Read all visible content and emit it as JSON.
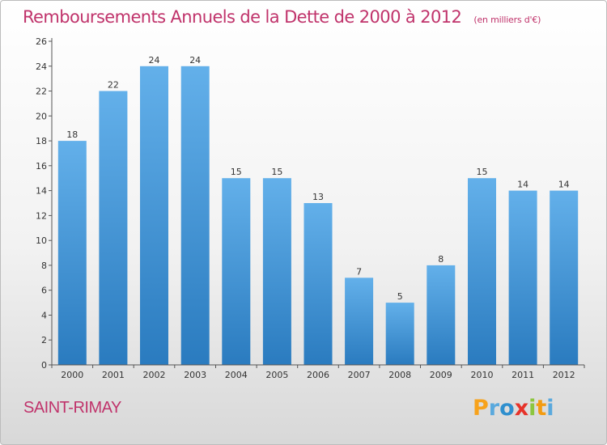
{
  "header": {
    "title": "Remboursements Annuels de la Dette de 2000 à 2012",
    "subtitle": "(en milliers d'€)"
  },
  "location": "SAINT-RIMAY",
  "logo_text": "Proxiti",
  "colors": {
    "bar_light": "#63b0ea",
    "bar_dark": "#2a7bbf",
    "title": "#c0336b",
    "axis": "#555555"
  },
  "chart_data": {
    "type": "bar",
    "categories": [
      "2000",
      "2001",
      "2002",
      "2003",
      "2004",
      "2005",
      "2006",
      "2007",
      "2008",
      "2009",
      "2010",
      "2011",
      "2012"
    ],
    "values": [
      18,
      22,
      24,
      24,
      15,
      15,
      13,
      7,
      5,
      8,
      15,
      14,
      14
    ],
    "title": "Remboursements Annuels de la Dette de 2000 à 2012",
    "subtitle": "(en milliers d'€)",
    "ylim": [
      0,
      26
    ],
    "yticks": [
      0,
      2,
      4,
      6,
      8,
      10,
      12,
      14,
      16,
      18,
      20,
      22,
      24,
      26
    ],
    "data_labels": true,
    "grid": false,
    "legend": "none"
  }
}
